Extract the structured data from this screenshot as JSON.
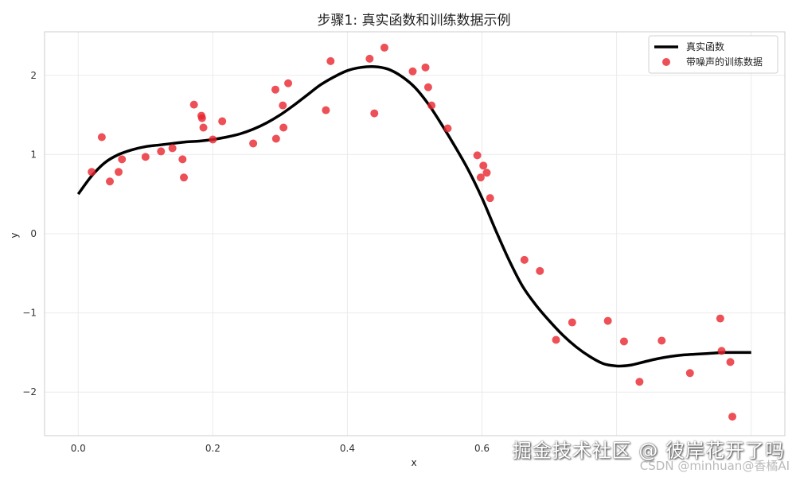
{
  "chart_data": {
    "type": "line",
    "title": "步骤1: 真实函数和训练数据示例",
    "xlabel": "x",
    "ylabel": "y",
    "xlim": [
      -0.05,
      1.05
    ],
    "ylim": [
      -2.55,
      2.55
    ],
    "xticks": [
      0.0,
      0.2,
      0.4,
      0.6
    ],
    "xtick_labels": [
      "0.0",
      "0.2",
      "0.4",
      "0.6"
    ],
    "yticks": [
      -2,
      -1,
      0,
      1,
      2
    ],
    "ytick_labels": [
      "−2",
      "−1",
      "0",
      "1",
      "2"
    ],
    "grid": true,
    "legend_position": "top-right",
    "series": [
      {
        "name": "真实函数",
        "kind": "line",
        "color": "#000000",
        "x": [
          0.0,
          0.02,
          0.04,
          0.06,
          0.08,
          0.1,
          0.12,
          0.14,
          0.16,
          0.18,
          0.2,
          0.22,
          0.24,
          0.26,
          0.28,
          0.3,
          0.32,
          0.34,
          0.36,
          0.38,
          0.4,
          0.42,
          0.44,
          0.46,
          0.48,
          0.5,
          0.52,
          0.54,
          0.56,
          0.58,
          0.6,
          0.62,
          0.64,
          0.66,
          0.68,
          0.7,
          0.72,
          0.74,
          0.76,
          0.78,
          0.8,
          0.82,
          0.84,
          0.86,
          0.88,
          0.9,
          0.92,
          0.94,
          0.96,
          0.98,
          1.0
        ],
        "y": [
          0.5,
          0.73,
          0.9,
          1.0,
          1.06,
          1.1,
          1.12,
          1.14,
          1.16,
          1.17,
          1.19,
          1.22,
          1.26,
          1.32,
          1.4,
          1.5,
          1.62,
          1.75,
          1.88,
          1.98,
          2.06,
          2.1,
          2.11,
          2.08,
          1.99,
          1.85,
          1.64,
          1.38,
          1.1,
          0.8,
          0.45,
          0.05,
          -0.33,
          -0.66,
          -0.9,
          -1.1,
          -1.28,
          -1.43,
          -1.55,
          -1.64,
          -1.67,
          -1.66,
          -1.62,
          -1.58,
          -1.55,
          -1.53,
          -1.52,
          -1.51,
          -1.5,
          -1.5,
          -1.5
        ]
      },
      {
        "name": "带噪声的训练数据",
        "kind": "scatter",
        "color": "#e8242c",
        "x": [
          0.02,
          0.035,
          0.047,
          0.06,
          0.065,
          0.1,
          0.123,
          0.14,
          0.155,
          0.157,
          0.172,
          0.183,
          0.184,
          0.186,
          0.2,
          0.214,
          0.26,
          0.293,
          0.294,
          0.304,
          0.305,
          0.312,
          0.368,
          0.375,
          0.433,
          0.44,
          0.455,
          0.497,
          0.516,
          0.52,
          0.525,
          0.549,
          0.593,
          0.598,
          0.602,
          0.607,
          0.612,
          0.663,
          0.686,
          0.71,
          0.734,
          0.787,
          0.811,
          0.834,
          0.867,
          0.909,
          0.954,
          0.956,
          0.969,
          0.972
        ],
        "y": [
          0.78,
          1.22,
          0.66,
          0.78,
          0.94,
          0.97,
          1.04,
          1.08,
          0.94,
          0.71,
          1.63,
          1.49,
          1.46,
          1.34,
          1.19,
          1.42,
          1.14,
          1.82,
          1.2,
          1.62,
          1.34,
          1.9,
          1.56,
          2.18,
          2.21,
          1.52,
          2.35,
          2.05,
          2.1,
          1.85,
          1.62,
          1.33,
          0.99,
          0.71,
          0.86,
          0.77,
          0.45,
          -0.33,
          -0.47,
          -1.34,
          -1.12,
          -1.1,
          -1.36,
          -1.87,
          -1.35,
          -1.76,
          -1.07,
          -1.48,
          -1.62,
          -2.31
        ]
      }
    ]
  },
  "watermark": {
    "line1": "掘金技术社区 @ 彼岸花开了吗",
    "line2": "CSDN @minhuan@香橘AI"
  }
}
